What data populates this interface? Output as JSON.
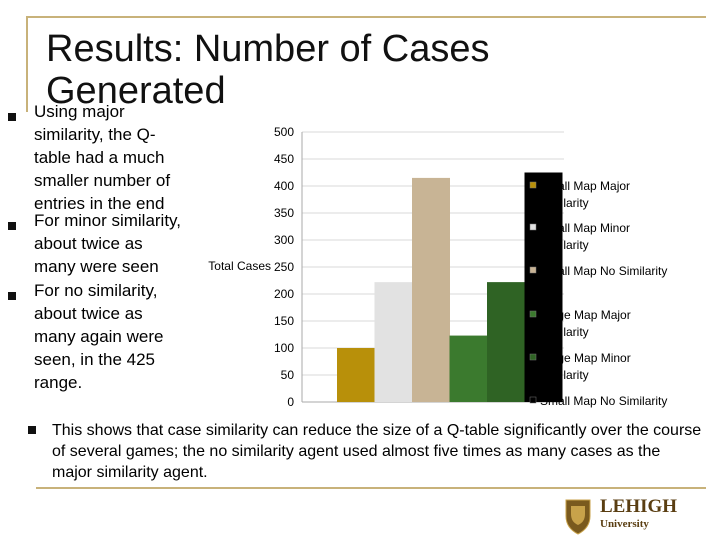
{
  "slide": {
    "title_line1": "Results: Number of Cases",
    "title_line2": "Generated",
    "bullets": [
      "Using major similarity, the Q-table had a much smaller number of entries in the end",
      "For minor similarity, about twice as many were seen",
      "For no similarity, about twice as many again were seen, in the 425 range."
    ],
    "bullet1_lines": "similarity, the Q-\ntable had a much\nsmaller number of\nentries in the end",
    "bullet1_first": "Using major",
    "bullet2_first": "For minor similarity,",
    "bullet2_rest": "about twice as\nmany were seen",
    "bullet3": "For no similarity,\nabout twice as\nmany again were\nseen, in the 425\nrange.",
    "footer": "This shows that case similarity can reduce the size of a Q-table significantly over the course of several games;  the no similarity agent used almost five times as many cases as the major similarity agent.",
    "logo_name": "LEHIGH",
    "logo_sub": "University",
    "colors": {
      "accent": "#c8b27a",
      "bullet": "#111111"
    }
  },
  "chart_data": {
    "type": "bar",
    "ylabel": "Total Cases",
    "ylim": [
      0,
      500
    ],
    "yticks": [
      0,
      50,
      100,
      150,
      200,
      250,
      300,
      350,
      400,
      450,
      500
    ],
    "series": [
      {
        "name": "Small Map Major Similarity",
        "value": 100,
        "color": "#b8900a"
      },
      {
        "name": "Small Map Minor Similarity",
        "value": 222,
        "color": "#e2e2e2"
      },
      {
        "name": "Small Map No Similarity",
        "value": 415,
        "color": "#c8b495"
      },
      {
        "name": "Large Map Major Similarity",
        "value": 123,
        "color": "#3b7a2e"
      },
      {
        "name": "Large Map Minor Similarity",
        "value": 222,
        "color": "#2f6324"
      },
      {
        "name": "Small Map No Similarity",
        "value": 425,
        "color": "#000000"
      }
    ],
    "legend_display": [
      {
        "line1": "Small Map Major",
        "line2": "Similarity"
      },
      {
        "line1": "Small Map Minor",
        "line2": "Similarity"
      },
      {
        "line1": "Small Map No Similarity",
        "line2": ""
      },
      {
        "line1": "Large Map Major",
        "line2": "Similarity"
      },
      {
        "line1": "Large Map Minor",
        "line2": "Similarity"
      },
      {
        "line1": "Small Map No Similarity",
        "line2": ""
      }
    ]
  }
}
